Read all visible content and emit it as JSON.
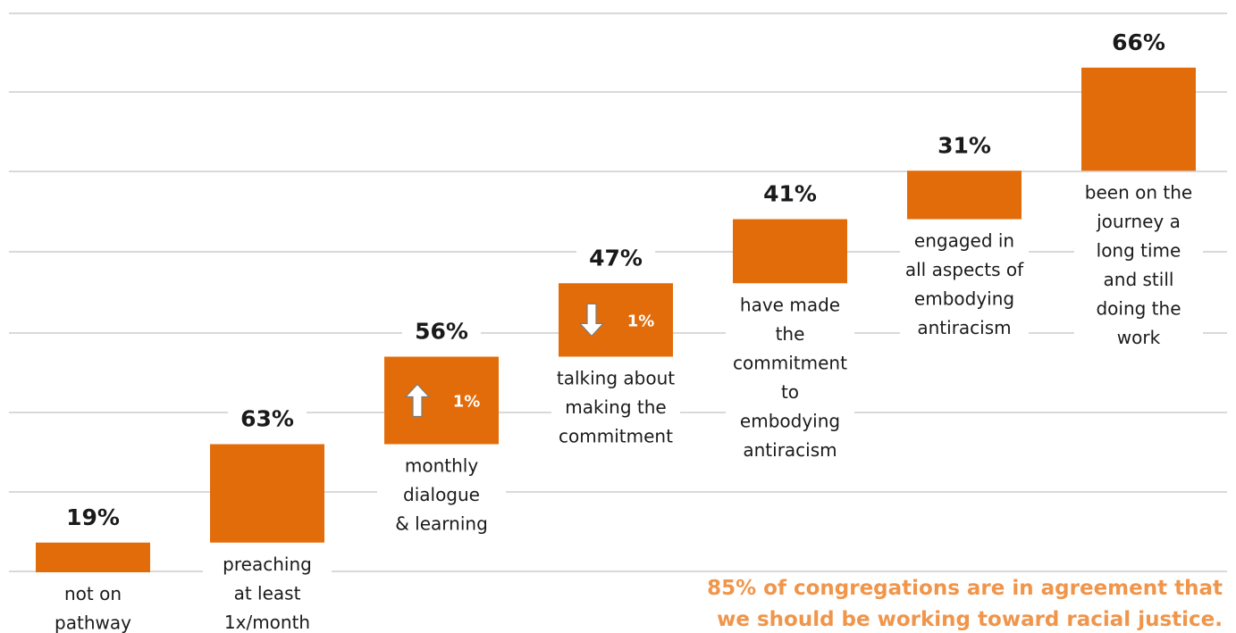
{
  "chart_data": {
    "type": "bar",
    "categories": [
      "not on pathway",
      "preaching at least 1x/month",
      "monthly dialogue & learning",
      "talking about making the commitment",
      "have made the commitment to embodying antiracism",
      "engaged in all aspects of embodying antiracism",
      "been on the journey a long time and still doing the work"
    ],
    "category_lines": [
      [
        "not on",
        "pathway"
      ],
      [
        "preaching",
        "at least",
        "1x/month"
      ],
      [
        "monthly",
        "dialogue",
        "& learning"
      ],
      [
        "talking about",
        "making the",
        "commitment"
      ],
      [
        "have made",
        "the",
        "commitment",
        "to",
        "embodying",
        "antiracism"
      ],
      [
        "engaged in",
        "all aspects of",
        "embodying",
        "antiracism"
      ],
      [
        "been on the",
        "journey a",
        "long time",
        "and still",
        "doing the",
        "work"
      ]
    ],
    "values": [
      19,
      63,
      56,
      47,
      41,
      31,
      66
    ],
    "value_labels": [
      "19%",
      "63%",
      "56%",
      "47%",
      "41%",
      "31%",
      "66%"
    ],
    "changes": [
      {
        "index": 2,
        "direction": "up",
        "label": "1%"
      },
      {
        "index": 3,
        "direction": "down",
        "label": "1%"
      }
    ],
    "grid": true,
    "bar_color": "#e36c0a"
  },
  "footnote": {
    "line1": "85% of congregations are in agreement that",
    "line2": "we should be working toward racial justice.",
    "color": "#f0954a"
  },
  "colors": {
    "grid": "#d9d9d9",
    "text": "#1a1a1a"
  }
}
